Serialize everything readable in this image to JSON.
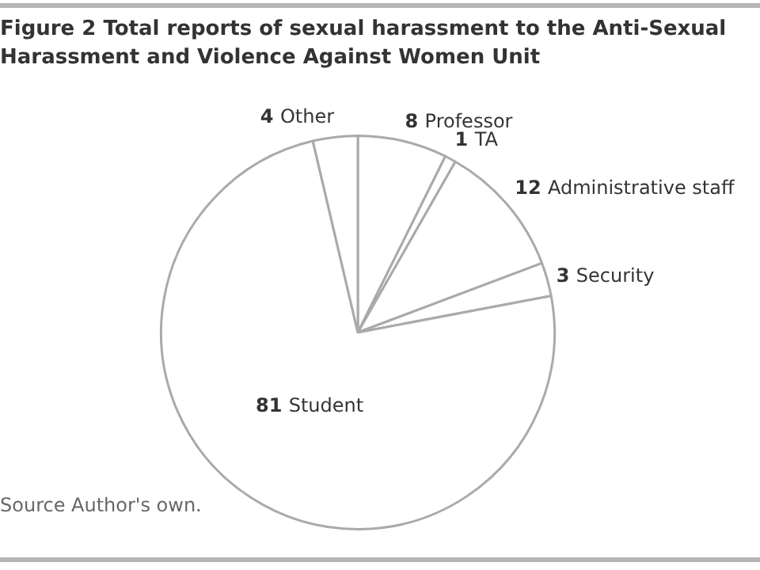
{
  "chart_data": {
    "type": "pie",
    "title": "Figure 2 Total reports of sexual harassment to the Anti-Sexual Harassment and Violence Against Women Unit",
    "categories": [
      "Professor",
      "TA",
      "Administrative staff",
      "Security",
      "Student",
      "Other"
    ],
    "values": [
      8,
      1,
      12,
      3,
      81,
      4
    ],
    "colors": [
      "#ffffff",
      "#ffffff",
      "#ffffff",
      "#ffffff",
      "#ffffff",
      "#ffffff"
    ],
    "data_labels": true,
    "legend": false,
    "annotations": [
      "Source Author's own."
    ]
  }
}
